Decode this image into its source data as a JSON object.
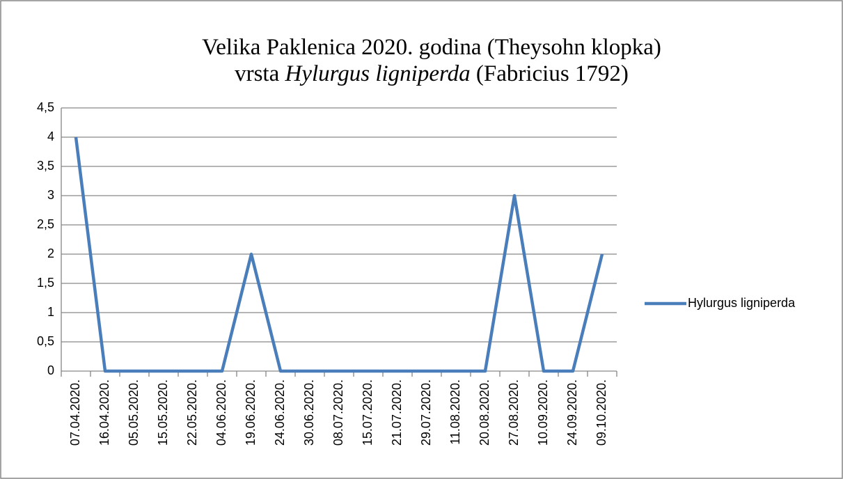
{
  "chart_data": {
    "type": "line",
    "title": {
      "line1": "Velika Paklenica 2020. godina (Theysohn klopka)",
      "line2": [
        "vrsta",
        "Hylurgus ligniperda",
        "(Fabricius 1792)"
      ]
    },
    "categories": [
      "07.04.2020.",
      "16.04.2020.",
      "05.05.2020.",
      "15.05.2020.",
      "22.05.2020.",
      "04.06.2020.",
      "19.06.2020.",
      "24.06.2020.",
      "30.06.2020.",
      "08.07.2020.",
      "15.07.2020.",
      "21.07.2020.",
      "29.07.2020.",
      "11.08.2020.",
      "20.08.2020.",
      "27.08.2020.",
      "10.09.2020.",
      "24.09.2020.",
      "09.10.2020."
    ],
    "series": [
      {
        "name": "Hylurgus ligniperda",
        "color": "#4a7ebb",
        "values": [
          4,
          0,
          0,
          0,
          0,
          0,
          2,
          0,
          0,
          0,
          0,
          0,
          0,
          0,
          0,
          3,
          0,
          0,
          2
        ]
      }
    ],
    "ylim": [
      0,
      4.5
    ],
    "yticks": [
      0,
      {
        "value": 0.5,
        "label": "0,5"
      },
      1,
      {
        "value": 1.5,
        "label": "1,5"
      },
      2,
      {
        "value": 2.5,
        "label": "2,5"
      },
      3,
      {
        "value": 3.5,
        "label": "3,5"
      },
      4,
      {
        "value": 4.5,
        "label": "4,5"
      }
    ],
    "grid": true,
    "legend": "right"
  }
}
